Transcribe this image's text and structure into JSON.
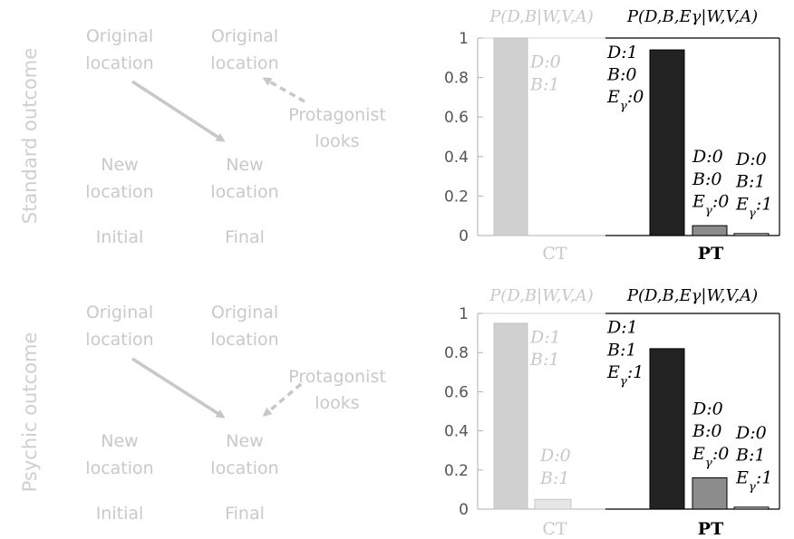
{
  "row_labels": [
    "Standard outcome",
    "Psychic outcome"
  ],
  "diagram": {
    "original": "Original location",
    "new": "New location",
    "initial": "Initial",
    "final": "Final",
    "protagonist": "Protagonist looks"
  },
  "colors": {
    "ct_bar": "#d0d0d0",
    "ct_bar_light": "#e6e6e6",
    "pt_big": "#222222",
    "pt_mid": "#8c8c8c",
    "pt_small": "#cfcfcf",
    "faded_text": "#c8c8c8",
    "arrow": "#c8c8c8"
  },
  "chart_data": [
    {
      "type": "bar",
      "ylim": [
        0,
        1
      ],
      "yticks": [
        "0",
        "0.2",
        "0.4",
        "0.6",
        "0.8",
        "1"
      ],
      "groups": [
        {
          "title": "P(D,B|W,V,A)",
          "category": "CT",
          "bars": [
            {
              "value": 1.0,
              "label": [
                "D:0",
                "B:1"
              ]
            },
            {
              "value": 0.0,
              "label": []
            }
          ]
        },
        {
          "title": "P(D,B,Eγ|W,V,A)",
          "category": "PT",
          "bars": [
            {
              "value": 0.0,
              "label": []
            },
            {
              "value": 0.94,
              "label": [
                "D:1",
                "B:0",
                "Eγ:0"
              ]
            },
            {
              "value": 0.05,
              "label": [
                "D:0",
                "B:0",
                "Eγ:0"
              ]
            },
            {
              "value": 0.01,
              "label": [
                "D:0",
                "B:1",
                "Eγ:1"
              ]
            }
          ]
        }
      ]
    },
    {
      "type": "bar",
      "ylim": [
        0,
        1
      ],
      "yticks": [
        "0",
        "0.2",
        "0.4",
        "0.6",
        "0.8",
        "1"
      ],
      "groups": [
        {
          "title": "P(D,B|W,V,A)",
          "category": "CT",
          "bars": [
            {
              "value": 0.95,
              "label": [
                "D:1",
                "B:1"
              ]
            },
            {
              "value": 0.05,
              "label": [
                "D:0",
                "B:1"
              ]
            }
          ]
        },
        {
          "title": "P(D,B,Eγ|W,V,A)",
          "category": "PT",
          "bars": [
            {
              "value": 0.0,
              "label": []
            },
            {
              "value": 0.82,
              "label": [
                "D:1",
                "B:1",
                "Eγ:1"
              ]
            },
            {
              "value": 0.16,
              "label": [
                "D:0",
                "B:0",
                "Eγ:0"
              ]
            },
            {
              "value": 0.01,
              "label": [
                "D:0",
                "B:1",
                "Eγ:1"
              ]
            }
          ]
        }
      ]
    }
  ]
}
